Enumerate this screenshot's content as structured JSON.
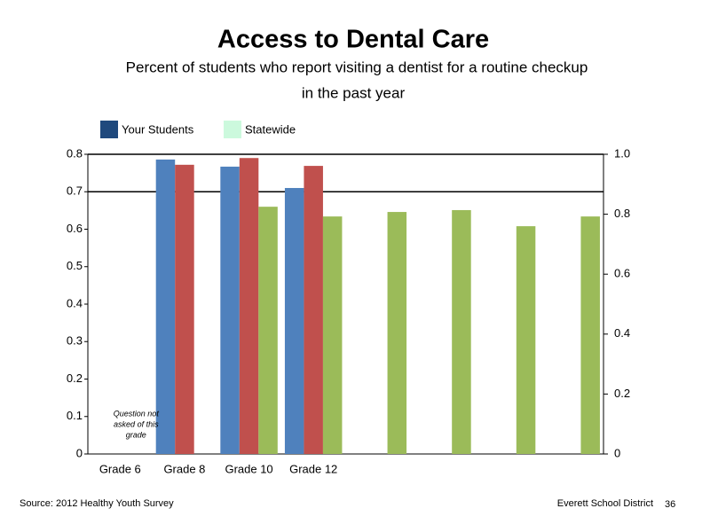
{
  "chart_data": {
    "type": "bar",
    "title": "Access to Dental Care",
    "subtitle": [
      "Percent of students who report visiting a dentist for a routine checkup",
      "in the past year"
    ],
    "legend": [
      {
        "name": "Your Students",
        "color": "#1f497d"
      },
      {
        "name": "Statewide",
        "color": "#ccf9dd"
      }
    ],
    "categories": [
      "Grade 6",
      "Grade 8",
      "Grade 10",
      "Grade 12",
      null,
      null,
      null,
      null
    ],
    "series": [
      {
        "color": "#4f81bd",
        "values": [
          null,
          0.786,
          0.767,
          0.71,
          null,
          null,
          null,
          null
        ]
      },
      {
        "color": "#c0504d",
        "values": [
          null,
          0.772,
          0.79,
          0.769,
          null,
          null,
          null,
          null
        ]
      },
      {
        "color": "#9bbb59",
        "values": [
          null,
          null,
          0.66,
          0.634,
          0.646,
          0.651,
          0.608,
          0.634
        ]
      }
    ],
    "ylim": [
      0,
      0.8
    ],
    "yticks": [
      0,
      0.1,
      0.2,
      0.3,
      0.4,
      0.5,
      0.6,
      0.7,
      0.8
    ],
    "y2lim": [
      0,
      1
    ],
    "y2ticks": [
      0,
      0.2,
      0.4,
      0.6,
      0.8,
      {
        "value": 1,
        "label": "1.0"
      }
    ],
    "grid_values": [
      0.7,
      0.8
    ],
    "annotation": [
      "Question not",
      "asked of this",
      "grade"
    ],
    "source": "Source: 2012 Healthy Youth Survey",
    "organization": "Everett School District",
    "page_number": "36"
  }
}
